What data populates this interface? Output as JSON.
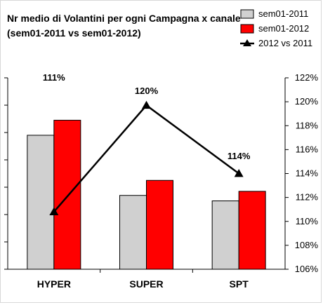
{
  "chart_data": {
    "type": "bar",
    "title": "Nr medio di Volantini per ogni Campagna x canale",
    "subtitle": "(sem01-2011 vs sem01-2012)",
    "categories": [
      "HYPER",
      "SUPER",
      "SPT"
    ],
    "series": [
      {
        "name": "sem01-2011",
        "type": "bar",
        "color": "#d0d0d0",
        "values": [
          9.8,
          5.4,
          5.0
        ]
      },
      {
        "name": "sem01-2012",
        "type": "bar",
        "color": "#ff0000",
        "values": [
          10.9,
          6.5,
          5.7
        ]
      },
      {
        "name": "2012 vs 2011",
        "type": "line",
        "axis": "right",
        "color": "#000000",
        "marker": "triangle",
        "values": [
          110.8,
          119.7,
          114.0
        ]
      }
    ],
    "data_labels": [
      "111%",
      "120%",
      "114%"
    ],
    "left_axis": {
      "ylim": [
        0,
        14
      ],
      "tick_labels_shown": false,
      "tick_count": 8
    },
    "right_axis": {
      "ylim": [
        106,
        122
      ],
      "ticks": [
        106,
        108,
        110,
        112,
        114,
        116,
        118,
        120,
        122
      ],
      "tick_labels": [
        "106%",
        "108%",
        "110%",
        "112%",
        "114%",
        "116%",
        "118%",
        "120%",
        "122%"
      ]
    },
    "grid": false,
    "legend_position": "top-right"
  }
}
